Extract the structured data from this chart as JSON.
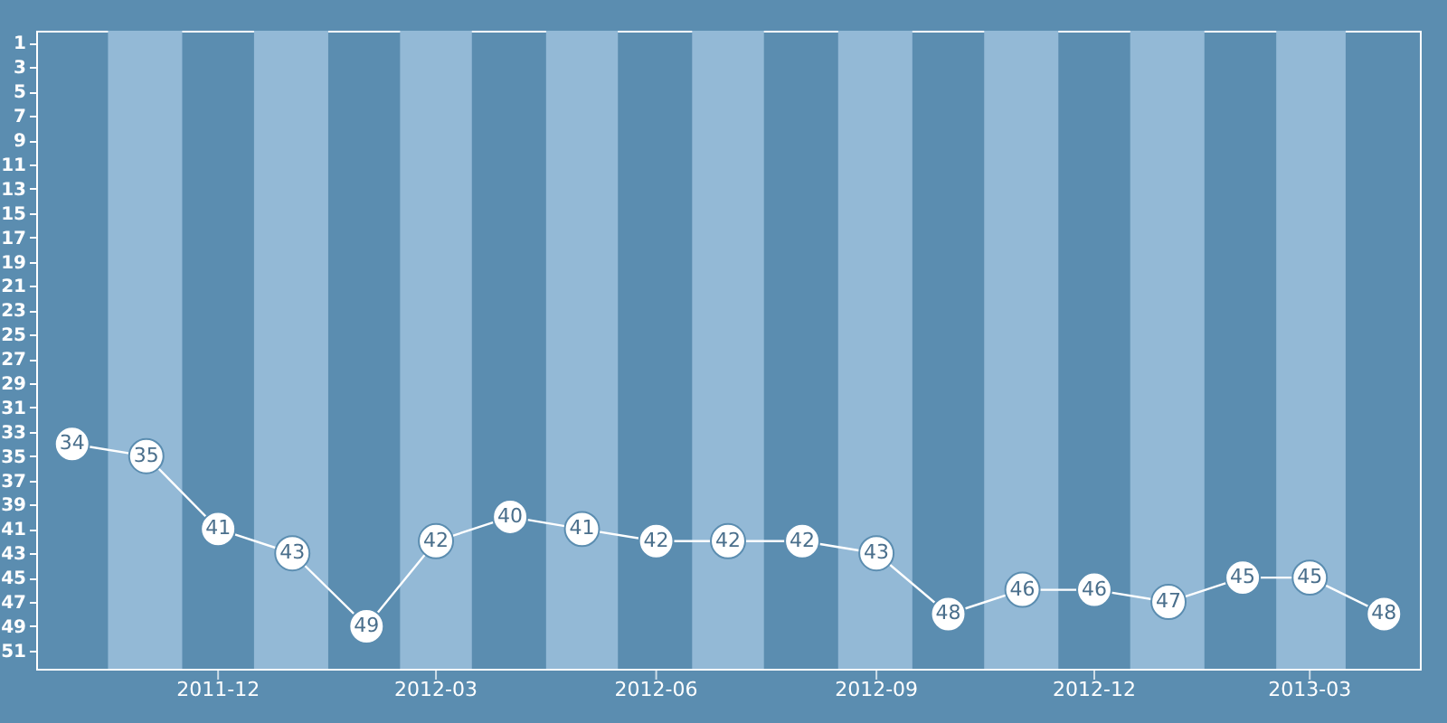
{
  "chart_data": {
    "type": "line",
    "x": [
      "2011-10",
      "2011-11",
      "2011-12",
      "2012-01",
      "2012-02",
      "2012-03",
      "2012-04",
      "2012-05",
      "2012-06",
      "2012-07",
      "2012-08",
      "2012-09",
      "2012-10",
      "2012-11",
      "2012-12",
      "2013-01",
      "2013-02",
      "2013-03",
      "2013-04"
    ],
    "series": [
      {
        "color": "#ffffff",
        "values": [
          34,
          35,
          41,
          43,
          49,
          42,
          40,
          41,
          42,
          42,
          42,
          43,
          48,
          46,
          46,
          47,
          45,
          45,
          48
        ]
      }
    ],
    "xlim": [
      "2011-09-16",
      "2013-04-16"
    ],
    "xticks": [
      "2011-12",
      "2012-03",
      "2012-06",
      "2012-09",
      "2012-12",
      "2013-03"
    ],
    "ylim": [
      52.5,
      0
    ],
    "yticks": [
      1,
      3,
      5,
      7,
      9,
      11,
      13,
      15,
      17,
      19,
      21,
      23,
      25,
      27,
      29,
      31,
      33,
      35,
      37,
      39,
      41,
      43,
      45,
      47,
      49,
      51
    ],
    "bands": [
      {
        "axis": "x",
        "from": "2011-10-16",
        "to": "2011-11-16",
        "color": "#93b9d6"
      },
      {
        "axis": "x",
        "from": "2011-12-16",
        "to": "2012-01-16",
        "color": "#93b9d6"
      },
      {
        "axis": "x",
        "from": "2012-02-15",
        "to": "2012-03-16",
        "color": "#93b9d6"
      },
      {
        "axis": "x",
        "from": "2012-04-16",
        "to": "2012-05-16",
        "color": "#93b9d6"
      },
      {
        "axis": "x",
        "from": "2012-06-16",
        "to": "2012-07-16",
        "color": "#93b9d6"
      },
      {
        "axis": "x",
        "from": "2012-08-16",
        "to": "2012-09-16",
        "color": "#93b9d6"
      },
      {
        "axis": "x",
        "from": "2012-10-16",
        "to": "2012-11-16",
        "color": "#93b9d6"
      },
      {
        "axis": "x",
        "from": "2012-12-16",
        "to": "2013-01-16",
        "color": "#93b9d6"
      },
      {
        "axis": "x",
        "from": "2013-02-15",
        "to": "2013-03-16",
        "color": "#93b9d6"
      }
    ],
    "marker": "circle",
    "line_style": "solid",
    "data_labels": true,
    "grid": false
  }
}
